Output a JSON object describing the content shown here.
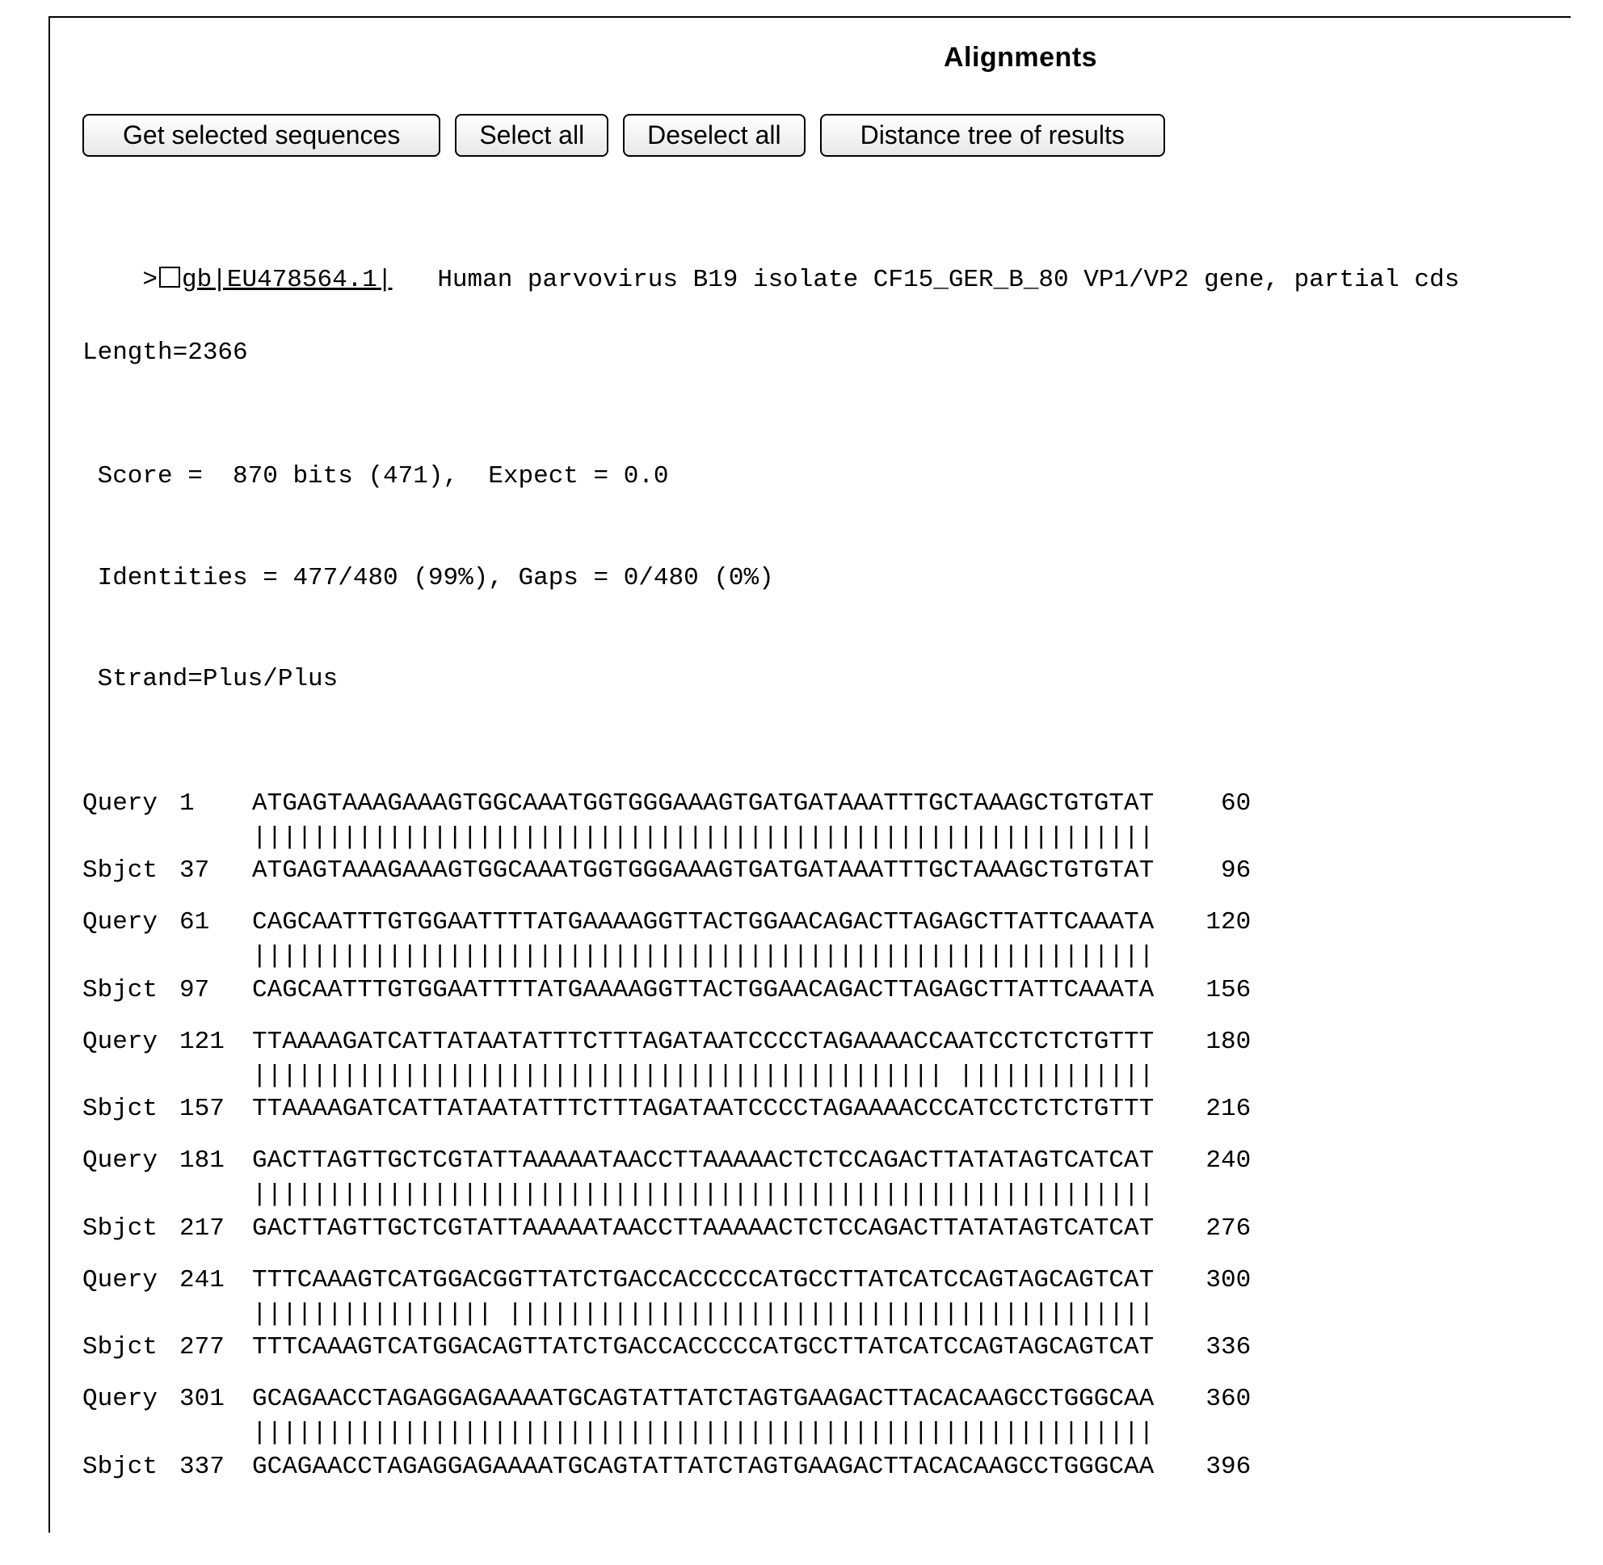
{
  "title": "Alignments",
  "toolbar": {
    "get_selected": "Get selected sequences",
    "select_all": "Select all",
    "deselect_all": "Deselect all",
    "distance_tree": "Distance tree of results"
  },
  "hit": {
    "prefix": ">",
    "db_tag": "gb",
    "accession": "EU478564.1",
    "description": "Human parvovirus B19 isolate CF15_GER_B_80 VP1/VP2 gene, partial cds",
    "length_label": "Length=2366"
  },
  "stats": {
    "score_line": " Score =  870 bits (471),  Expect = 0.0",
    "ident_line": " Identities = 477/480 (99%), Gaps = 0/480 (0%)",
    "strand_line": " Strand=Plus/Plus"
  },
  "labels": {
    "query": "Query",
    "sbjct": "Sbjct"
  },
  "alignment": [
    {
      "q_start": "1",
      "q_seq": "ATGAGTAAAGAAAGTGGCAAATGGTGGGAAAGTGATGATAAATTTGCTAAAGCTGTGTAT",
      "q_end": "60",
      "match": "||||||||||||||||||||||||||||||||||||||||||||||||||||||||||||",
      "s_start": "37",
      "s_seq": "ATGAGTAAAGAAAGTGGCAAATGGTGGGAAAGTGATGATAAATTTGCTAAAGCTGTGTAT",
      "s_end": "96"
    },
    {
      "q_start": "61",
      "q_seq": "CAGCAATTTGTGGAATTTTATGAAAAGGTTACTGGAACAGACTTAGAGCTTATTCAAATA",
      "q_end": "120",
      "match": "||||||||||||||||||||||||||||||||||||||||||||||||||||||||||||",
      "s_start": "97",
      "s_seq": "CAGCAATTTGTGGAATTTTATGAAAAGGTTACTGGAACAGACTTAGAGCTTATTCAAATA",
      "s_end": "156"
    },
    {
      "q_start": "121",
      "q_seq": "TTAAAAGATCATTATAATATTTCTTTAGATAATCCCCTAGAAAACCAATCCTCTCTGTTT",
      "q_end": "180",
      "match": "|||||||||||||||||||||||||||||||||||||||||||||| |||||||||||||",
      "s_start": "157",
      "s_seq": "TTAAAAGATCATTATAATATTTCTTTAGATAATCCCCTAGAAAACCCATCCTCTCTGTTT",
      "s_end": "216"
    },
    {
      "q_start": "181",
      "q_seq": "GACTTAGTTGCTCGTATTAAAAATAACCTTAAAAACTCTCCAGACTTATATAGTCATCAT",
      "q_end": "240",
      "match": "||||||||||||||||||||||||||||||||||||||||||||||||||||||||||||",
      "s_start": "217",
      "s_seq": "GACTTAGTTGCTCGTATTAAAAATAACCTTAAAAACTCTCCAGACTTATATAGTCATCAT",
      "s_end": "276"
    },
    {
      "q_start": "241",
      "q_seq": "TTTCAAAGTCATGGACGGTTATCTGACCACCCCCATGCCTTATCATCCAGTAGCAGTCAT",
      "q_end": "300",
      "match": "|||||||||||||||| |||||||||||||||||||||||||||||||||||||||||||",
      "s_start": "277",
      "s_seq": "TTTCAAAGTCATGGACAGTTATCTGACCACCCCCATGCCTTATCATCCAGTAGCAGTCAT",
      "s_end": "336"
    },
    {
      "q_start": "301",
      "q_seq": "GCAGAACCTAGAGGAGAAAATGCAGTATTATCTAGTGAAGACTTACACAAGCCTGGGCAA",
      "q_end": "360",
      "match": "||||||||||||||||||||||||||||||||||||||||||||||||||||||||||||",
      "s_start": "337",
      "s_seq": "GCAGAACCTAGAGGAGAAAATGCAGTATTATCTAGTGAAGACTTACACAAGCCTGGGCAA",
      "s_end": "396"
    }
  ]
}
